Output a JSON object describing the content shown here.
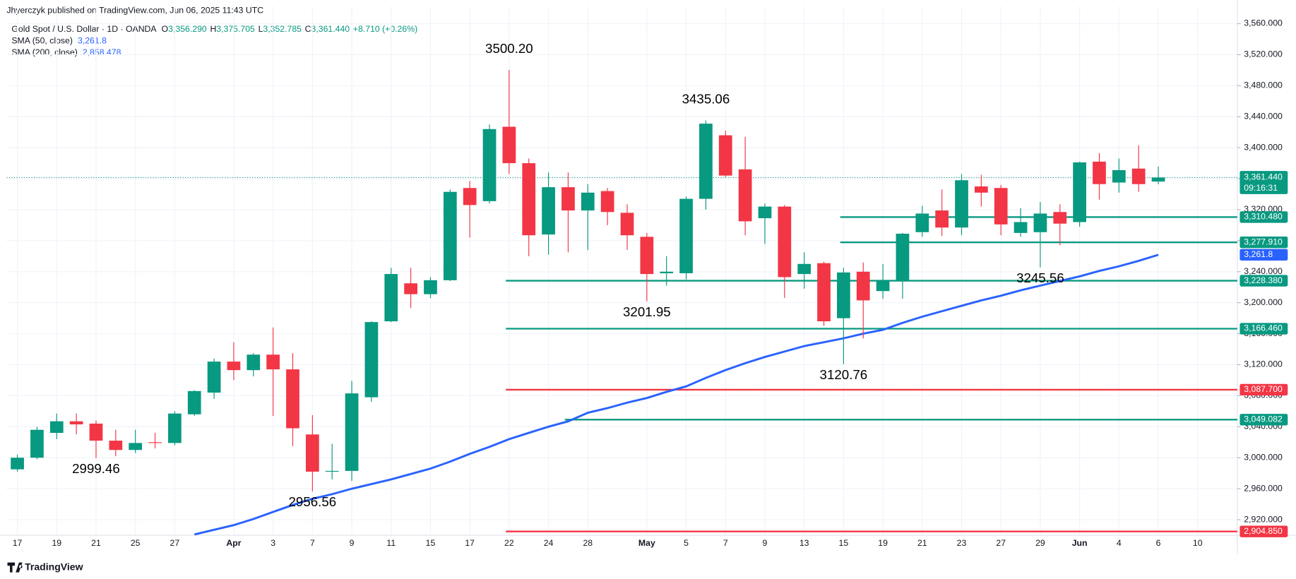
{
  "chart_data": {
    "type": "candlestick",
    "publisher": "Jhyerczyk published on TradingView.com, Jun 06, 2025 11:43 UTC",
    "title": "Gold Spot / U.S. Dollar · 1D · OANDA",
    "ohlc_legend": [
      {
        "key": "O",
        "value": "3,356.290"
      },
      {
        "key": "H",
        "value": "3,375.705"
      },
      {
        "key": "L",
        "value": "3,352.785"
      },
      {
        "key": "C",
        "value": "3,361.440"
      }
    ],
    "change": "+8.710 (+0.26%)",
    "brand": "TradingView",
    "up_color": "#089981",
    "down_color": "#f23645",
    "grid": true,
    "categories": [
      "17",
      null,
      "19",
      null,
      "21",
      null,
      "25",
      null,
      "27",
      null,
      null,
      "Apr",
      null,
      "3",
      null,
      "7",
      null,
      "9",
      null,
      "11",
      null,
      "15",
      null,
      "17",
      null,
      "22",
      null,
      "24",
      null,
      "28",
      null,
      null,
      "May",
      null,
      "5",
      null,
      "7",
      null,
      "9",
      null,
      "13",
      null,
      "15",
      null,
      "19",
      null,
      "21",
      null,
      "23",
      null,
      "27",
      null,
      "29",
      null,
      "Jun",
      null,
      "4",
      null,
      "6",
      null,
      "10"
    ],
    "open": [
      2985,
      3000,
      3032,
      3047,
      3044,
      3022,
      3010,
      3020,
      3019,
      3056,
      3084,
      3124,
      3113,
      3133,
      3114,
      3030,
      2982,
      2983,
      3078,
      3176,
      3225,
      3211,
      3229,
      3348,
      3331,
      3427,
      3380,
      3288,
      3349,
      3319,
      3344,
      3316,
      3285,
      3238,
      3238,
      3334,
      3416,
      3372,
      3309,
      3324,
      3237,
      3251,
      3180,
      3240,
      3215,
      3229,
      3291,
      3319,
      3297,
      3350,
      3348,
      3290,
      3291,
      3317,
      3304,
      3382,
      3355,
      3373,
      3356.29,
      null,
      null
    ],
    "high": [
      3004,
      3040,
      3057,
      3057,
      3048,
      3036,
      3036,
      3032,
      3060,
      3087,
      3128,
      3149,
      3135,
      3168,
      3135,
      3055,
      3018,
      3099,
      3176,
      3245,
      3245,
      3233,
      3346,
      3357,
      3430,
      3500.2,
      3386,
      3368,
      3368,
      3353,
      3348,
      3327,
      3290,
      3260,
      3337,
      3435.06,
      3422,
      3414,
      3328,
      3326,
      3265,
      3253,
      3245,
      3252,
      3250,
      3290,
      3325,
      3346,
      3366,
      3365,
      3352,
      3322,
      3330,
      3327,
      3382,
      3393,
      3386,
      3403,
      3375.705,
      null,
      null
    ],
    "low": [
      2982,
      2998,
      3024,
      3030,
      2999.46,
      3002,
      3006,
      3012,
      3016,
      3054,
      3076,
      3100,
      3105,
      3054,
      3015,
      2956.56,
      2972,
      2970,
      3072,
      3175,
      3193,
      3206,
      3228,
      3284,
      3328,
      3366,
      3260,
      3262,
      3265,
      3268,
      3300,
      3268,
      3201.95,
      3222,
      3230,
      3320,
      3362,
      3287,
      3276,
      3206,
      3218,
      3170,
      3120.76,
      3154,
      3205,
      3205,
      3285,
      3286,
      3287,
      3324,
      3287,
      3285,
      3245.56,
      3274,
      3298,
      3333,
      3342,
      3343,
      3352.785,
      null,
      null
    ],
    "close": [
      3000,
      3036,
      3047,
      3043,
      3022,
      3010,
      3019,
      3019,
      3057,
      3086,
      3124,
      3113,
      3133,
      3114,
      3038,
      2982,
      2983,
      3083,
      3175,
      3237,
      3211,
      3229,
      3343,
      3326,
      3424,
      3380,
      3287,
      3349,
      3319,
      3342,
      3317,
      3287,
      3237,
      3240,
      3334,
      3431,
      3364,
      3305,
      3324,
      3233,
      3250,
      3176,
      3239,
      3203,
      3229,
      3289,
      3315,
      3297,
      3358,
      3342,
      3301,
      3304,
      3315,
      3302,
      3381,
      3353,
      3371,
      3353,
      3361.44,
      null,
      null
    ],
    "ylim": [
      2900,
      3582
    ],
    "yticks": [
      {
        "value": 2920,
        "label": "2,920.000"
      },
      {
        "value": 2960,
        "label": "2,960.000"
      },
      {
        "value": 3000,
        "label": "3,000.000"
      },
      {
        "value": 3040,
        "label": "3,040.000"
      },
      {
        "value": 3080,
        "label": "3,080.000"
      },
      {
        "value": 3120,
        "label": "3,120.000"
      },
      {
        "value": 3160,
        "label": "3,160.000"
      },
      {
        "value": 3200,
        "label": "3,200.000"
      },
      {
        "value": 3240,
        "label": "3,240.000"
      },
      {
        "value": 3280,
        "label": "3,280.000"
      },
      {
        "value": 3320,
        "label": "3,320.000"
      },
      {
        "value": 3360,
        "label": "3,360.000"
      },
      {
        "value": 3400,
        "label": "3,400.000"
      },
      {
        "value": 3440,
        "label": "3,440.000"
      },
      {
        "value": 3480,
        "label": "3,480.000"
      },
      {
        "value": 3520,
        "label": "3,520.000"
      },
      {
        "value": 3560,
        "label": "3,560.000"
      }
    ],
    "sma": {
      "name": "SMA (50, close)",
      "value_label": "3,261.8",
      "color": "#2962ff",
      "values": [
        null,
        null,
        null,
        null,
        null,
        null,
        null,
        null,
        null,
        2901,
        2907,
        2913,
        2921,
        2930,
        2939,
        2947,
        2953,
        2960,
        2966,
        2972,
        2979,
        2986,
        2995,
        3005,
        3014,
        3024,
        3032,
        3040,
        3047,
        3058,
        3064,
        3071,
        3077,
        3085,
        3092,
        3103,
        3113,
        3122,
        3130,
        3137,
        3144,
        3149,
        3154,
        3160,
        3165,
        3174,
        3182,
        3189,
        3196,
        3203,
        3209,
        3216,
        3222,
        3228,
        3234,
        3241,
        3247,
        3254,
        3261.8,
        null,
        null
      ]
    },
    "sma200": {
      "name": "SMA (200, close)",
      "value_label": "2,858.478",
      "color": "#2962ff"
    },
    "last_price": {
      "value": 3361.44,
      "label": "3,361.440",
      "countdown": "09:16:31",
      "color": "#089981"
    },
    "levels": [
      {
        "value": 3310.48,
        "label": "3,310.480",
        "color": "#089981",
        "from": 42
      },
      {
        "value": 3277.91,
        "label": "3,277.910",
        "color": "#089981",
        "from": 42
      },
      {
        "value": 3228.38,
        "label": "3,228.380",
        "color": "#089981",
        "from": 25
      },
      {
        "value": 3166.46,
        "label": "3,166.460",
        "color": "#089981",
        "from": 25
      },
      {
        "value": 3087.7,
        "label": "3,087.700",
        "color": "#f23645",
        "from": 25
      },
      {
        "value": 3049.082,
        "label": "3,049.082",
        "color": "#089981",
        "from": 28
      },
      {
        "value": 2904.85,
        "label": "2,904.850",
        "color": "#f23645",
        "from": 25
      }
    ],
    "annotations": [
      {
        "text": "3500.20",
        "at": 25,
        "side": "above"
      },
      {
        "text": "3435.06",
        "at": 35,
        "side": "above"
      },
      {
        "text": "3201.95",
        "at": 32,
        "side": "below"
      },
      {
        "text": "3120.76",
        "at": 42,
        "side": "below"
      },
      {
        "text": "2999.46",
        "at": 4,
        "side": "below"
      },
      {
        "text": "2956.56",
        "at": 15,
        "side": "below"
      },
      {
        "text": "3245.56",
        "at": 52,
        "side": "below"
      }
    ]
  }
}
